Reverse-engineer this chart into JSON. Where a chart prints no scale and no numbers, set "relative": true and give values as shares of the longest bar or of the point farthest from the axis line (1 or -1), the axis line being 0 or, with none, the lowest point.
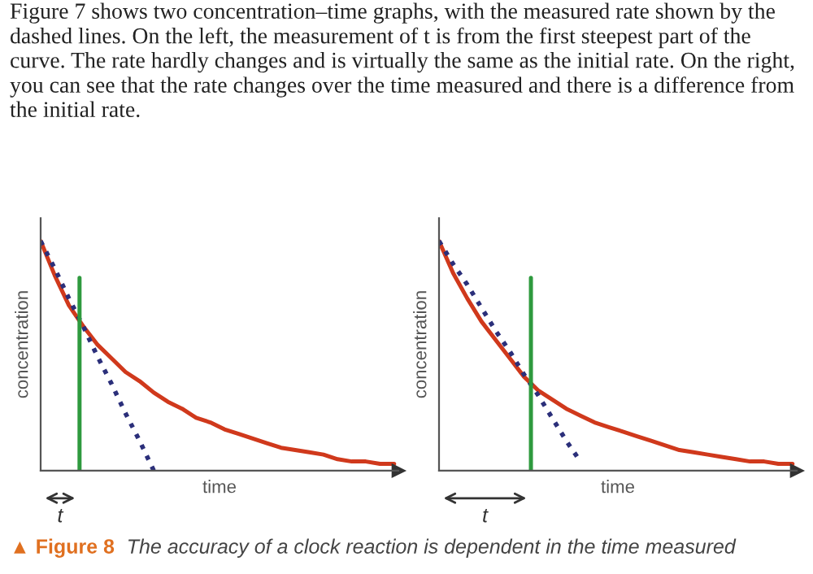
{
  "chart_data": [
    {
      "type": "line",
      "relative": true,
      "xlabel": "time",
      "ylabel": "concentration",
      "legend": false,
      "grid": false,
      "tick_labels": false,
      "categories": [
        null,
        null,
        null,
        null,
        null,
        null,
        null,
        null,
        null,
        null,
        null,
        null,
        null,
        null,
        null,
        null,
        null,
        null,
        null,
        null,
        null,
        null,
        null,
        null,
        null,
        null
      ],
      "series": [
        {
          "color": "#d0391c",
          "line_style": "solid",
          "values": [
            1,
            0.85,
            0.72,
            0.63,
            0.55,
            0.49,
            0.43,
            0.39,
            0.34,
            0.3,
            0.27,
            0.23,
            0.21,
            0.18,
            0.16,
            0.14,
            0.12,
            0.1,
            0.09,
            0.08,
            0.07,
            0.05,
            0.04,
            0.04,
            0.03,
            0.03
          ]
        },
        {
          "color": "#2b2f7a",
          "line_style": "dotted",
          "values": [
            1,
            0.88,
            0.75,
            0.63,
            0.5,
            0.38,
            0.25,
            0.13,
            0,
            null,
            null,
            null,
            null,
            null,
            null,
            null,
            null,
            null,
            null,
            null,
            null,
            null,
            null,
            null,
            null,
            null
          ]
        }
      ],
      "annotations": [
        "Figure 7 shows two concentration–time graphs, with the measured rate shown by the dashed lines. On the left, the measurement of t is from the first steepest part of the curve. The rate hardly changes and is virtually the same as the initial rate. On the right, you can see that the rate changes over the time measured and there is a difference from the initial rate.",
        "t"
      ]
    },
    {
      "type": "line",
      "relative": true,
      "xlabel": "time",
      "ylabel": "concentration",
      "legend": false,
      "grid": false,
      "tick_labels": false,
      "categories": [
        null,
        null,
        null,
        null,
        null,
        null,
        null,
        null,
        null,
        null,
        null,
        null,
        null,
        null,
        null,
        null,
        null,
        null,
        null,
        null,
        null,
        null,
        null,
        null,
        null,
        null
      ],
      "series": [
        {
          "color": "#d0391c",
          "line_style": "solid",
          "values": [
            1,
            0.86,
            0.75,
            0.65,
            0.57,
            0.49,
            0.41,
            0.35,
            0.31,
            0.27,
            0.24,
            0.21,
            0.19,
            0.17,
            0.15,
            0.13,
            0.11,
            0.09,
            0.08,
            0.07,
            0.06,
            0.05,
            0.04,
            0.04,
            0.03,
            0.03
          ]
        },
        {
          "color": "#2b2f7a",
          "line_style": "dotted",
          "values": [
            1,
            0.9,
            0.81,
            0.71,
            0.61,
            0.52,
            0.42,
            0.33,
            0.23,
            0.13,
            0.04,
            null,
            null,
            null,
            null,
            null,
            null,
            null,
            null,
            null,
            null,
            null,
            null,
            null,
            null,
            null
          ]
        }
      ],
      "annotations": [
        "t",
        "▲ Figure 8",
        "The accuracy of a clock reaction is dependent in the time measured"
      ]
    }
  ]
}
